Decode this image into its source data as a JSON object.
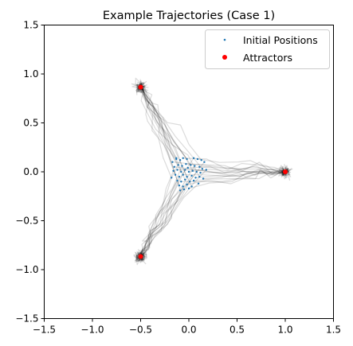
{
  "chart_data": {
    "type": "scatter",
    "title": "Example Trajectories (Case 1)",
    "xlabel": "",
    "ylabel": "",
    "xlim": [
      -1.5,
      1.5
    ],
    "ylim": [
      -1.5,
      1.5
    ],
    "x_ticks": [
      -1.5,
      -1.0,
      -0.5,
      0.0,
      0.5,
      1.0,
      1.5
    ],
    "y_ticks": [
      -1.5,
      -1.0,
      -0.5,
      0.0,
      0.5,
      1.0,
      1.5
    ],
    "x_tick_labels": [
      "−1.5",
      "−1.0",
      "−0.5",
      "0.0",
      "0.5",
      "1.0",
      "1.5"
    ],
    "y_tick_labels": [
      "−1.5",
      "−1.0",
      "−0.5",
      "0.0",
      "0.5",
      "1.0",
      "1.5"
    ],
    "grid": false,
    "legend": {
      "position": "top-right",
      "entries": [
        {
          "label": "Initial Positions",
          "marker": "small-dot",
          "color": "#1f77b4"
        },
        {
          "label": "Attractors",
          "marker": "dot",
          "color": "#ff0000"
        }
      ]
    },
    "colors": {
      "initial_positions": "#1f77b4",
      "attractors": "#ff0000",
      "trajectories": "#000000"
    },
    "series": [
      {
        "name": "Initial Positions",
        "points": [
          [
            -0.17,
            0.1
          ],
          [
            -0.13,
            0.13
          ],
          [
            -0.09,
            0.12
          ],
          [
            -0.06,
            0.14
          ],
          [
            -0.02,
            0.13
          ],
          [
            0.05,
            0.14
          ],
          [
            0.09,
            0.13
          ],
          [
            0.13,
            0.12
          ],
          [
            0.16,
            0.1
          ],
          [
            -0.15,
            0.05
          ],
          [
            -0.11,
            0.07
          ],
          [
            -0.07,
            0.06
          ],
          [
            -0.03,
            0.08
          ],
          [
            0.02,
            0.07
          ],
          [
            0.06,
            0.06
          ],
          [
            0.11,
            0.05
          ],
          [
            0.14,
            0.03
          ],
          [
            -0.16,
            0.01
          ],
          [
            -0.12,
            0.02
          ],
          [
            -0.08,
            0.0
          ],
          [
            -0.04,
            0.02
          ],
          [
            0.0,
            0.0
          ],
          [
            0.04,
            0.01
          ],
          [
            0.08,
            0.0
          ],
          [
            0.12,
            -0.01
          ],
          [
            -0.14,
            -0.03
          ],
          [
            -0.1,
            -0.05
          ],
          [
            -0.06,
            -0.03
          ],
          [
            -0.02,
            -0.05
          ],
          [
            0.03,
            -0.04
          ],
          [
            0.07,
            -0.06
          ],
          [
            0.11,
            -0.05
          ],
          [
            -0.12,
            -0.09
          ],
          [
            -0.08,
            -0.1
          ],
          [
            -0.04,
            -0.08
          ],
          [
            0.01,
            -0.1
          ],
          [
            0.05,
            -0.09
          ],
          [
            -0.1,
            -0.14
          ],
          [
            -0.06,
            -0.15
          ],
          [
            -0.02,
            -0.13
          ],
          [
            0.03,
            -0.15
          ],
          [
            -0.05,
            -0.18
          ],
          [
            0.0,
            -0.17
          ],
          [
            -0.09,
            -0.19
          ],
          [
            0.1,
            -0.12
          ],
          [
            0.15,
            -0.07
          ],
          [
            -0.18,
            -0.06
          ],
          [
            0.18,
            0.02
          ],
          [
            -0.01,
            0.04
          ],
          [
            -0.13,
            0.14
          ]
        ]
      },
      {
        "name": "Attractors",
        "points": [
          [
            1.0,
            0.0
          ],
          [
            -0.5,
            0.866
          ],
          [
            -0.5,
            -0.866
          ]
        ]
      }
    ]
  }
}
